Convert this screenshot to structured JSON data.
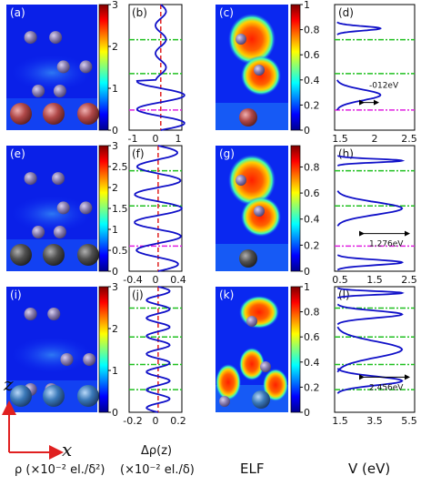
{
  "rows": [
    {
      "panels": [
        "(a)",
        "(b)",
        "(c)",
        "(d)"
      ],
      "rho_colorbar_ticks": [
        "0",
        "1",
        "2",
        "3"
      ],
      "drho_xticks": [
        "-1",
        "0",
        "1"
      ],
      "elf_colorbar_ticks": [
        "0",
        "0.2",
        "0.4",
        "0.6",
        "0.8",
        "1"
      ],
      "v_xticks": [
        "1.5",
        "2",
        "2.5"
      ],
      "annotation": "-012eV"
    },
    {
      "panels": [
        "(e)",
        "(f)",
        "(g)",
        "(h)"
      ],
      "rho_colorbar_ticks": [
        "0",
        "0.5",
        "1",
        "1.5",
        "2",
        "2.5",
        "3"
      ],
      "drho_xticks": [
        "-0.4",
        "0",
        "0.4"
      ],
      "elf_colorbar_ticks": [
        "0",
        "0.2",
        "0.4",
        "0.6",
        "0.8"
      ],
      "v_xticks": [
        "0.5",
        "1.5",
        "2.5"
      ],
      "annotation": "1.276eV"
    },
    {
      "panels": [
        "(i)",
        "(j)",
        "(k)",
        "(l)"
      ],
      "rho_colorbar_ticks": [
        "0",
        "1",
        "2",
        "3"
      ],
      "drho_xticks": [
        "-0.2",
        "0",
        "0.2"
      ],
      "elf_colorbar_ticks": [
        "0",
        "0.2",
        "0.4",
        "0.6",
        "0.8",
        "1"
      ],
      "v_xticks": [
        "1.5",
        "3.5",
        "5.5"
      ],
      "annotation": "2.456eV"
    }
  ],
  "axes_labels": {
    "z": "z",
    "x": "x",
    "rho": "ρ (×10⁻² el./δ²)",
    "drho": "Δρ(z)",
    "drho_units": "(×10⁻² el./δ)",
    "elf": "ELF",
    "v": "V (eV)"
  },
  "colors": {
    "profile_curve": "#1010c8",
    "zero_line": "#e02020",
    "green_dashdot": "#20c020",
    "magenta_dashdot": "#e020e0",
    "atom_top": "#8a7fb0",
    "atom_bottom_row1": "#b04848",
    "atom_bottom_row2": "#444444",
    "atom_bottom_row3": "#3a78b8"
  }
}
